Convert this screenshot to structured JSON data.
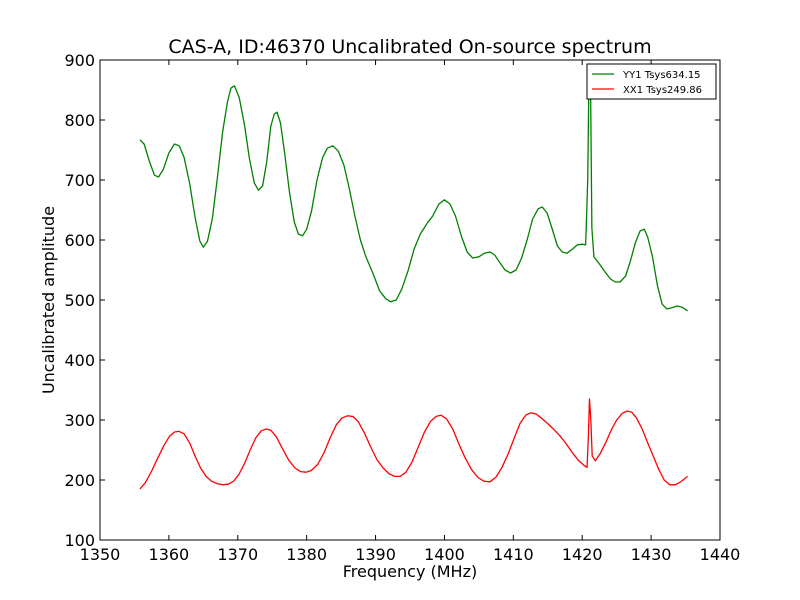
{
  "chart_data": {
    "type": "line",
    "title": "CAS-A, ID:46370 Uncalibrated On-source spectrum",
    "xlabel": "Frequency (MHz)",
    "ylabel": "Uncalibrated amplitude",
    "xlim": [
      1350,
      1440
    ],
    "ylim": [
      100,
      900
    ],
    "xticks": [
      1350,
      1360,
      1370,
      1380,
      1390,
      1400,
      1410,
      1420,
      1430,
      1440
    ],
    "yticks": [
      100,
      200,
      300,
      400,
      500,
      600,
      700,
      800,
      900
    ],
    "grid": false,
    "legend_position": "top-right",
    "series": [
      {
        "name": "YY1 Tsys634.15",
        "color": "#008000",
        "points": [
          [
            1355.8,
            767
          ],
          [
            1356.4,
            760
          ],
          [
            1357.2,
            730
          ],
          [
            1357.9,
            708
          ],
          [
            1358.5,
            705
          ],
          [
            1359.2,
            718
          ],
          [
            1360.0,
            745
          ],
          [
            1360.8,
            760
          ],
          [
            1361.5,
            757
          ],
          [
            1362.2,
            738
          ],
          [
            1363.0,
            695
          ],
          [
            1363.8,
            638
          ],
          [
            1364.5,
            598
          ],
          [
            1365.0,
            588
          ],
          [
            1365.6,
            598
          ],
          [
            1366.3,
            635
          ],
          [
            1367.0,
            700
          ],
          [
            1367.8,
            780
          ],
          [
            1368.5,
            830
          ],
          [
            1369.0,
            853
          ],
          [
            1369.5,
            857
          ],
          [
            1370.2,
            838
          ],
          [
            1371.0,
            790
          ],
          [
            1371.7,
            735
          ],
          [
            1372.4,
            695
          ],
          [
            1373.0,
            683
          ],
          [
            1373.6,
            690
          ],
          [
            1374.2,
            730
          ],
          [
            1374.8,
            790
          ],
          [
            1375.3,
            810
          ],
          [
            1375.7,
            813
          ],
          [
            1376.2,
            795
          ],
          [
            1376.8,
            745
          ],
          [
            1377.5,
            680
          ],
          [
            1378.2,
            630
          ],
          [
            1378.8,
            610
          ],
          [
            1379.4,
            607
          ],
          [
            1380.0,
            618
          ],
          [
            1380.7,
            648
          ],
          [
            1381.5,
            700
          ],
          [
            1382.3,
            737
          ],
          [
            1383.0,
            753
          ],
          [
            1383.8,
            757
          ],
          [
            1384.6,
            748
          ],
          [
            1385.4,
            725
          ],
          [
            1386.2,
            685
          ],
          [
            1387.0,
            640
          ],
          [
            1387.8,
            600
          ],
          [
            1388.6,
            572
          ],
          [
            1389.6,
            545
          ],
          [
            1390.6,
            515
          ],
          [
            1391.5,
            502
          ],
          [
            1392.2,
            497
          ],
          [
            1393.0,
            500
          ],
          [
            1393.8,
            518
          ],
          [
            1394.7,
            548
          ],
          [
            1395.6,
            585
          ],
          [
            1396.5,
            610
          ],
          [
            1397.5,
            628
          ],
          [
            1398.3,
            640
          ],
          [
            1399.2,
            660
          ],
          [
            1400.0,
            667
          ],
          [
            1400.8,
            660
          ],
          [
            1401.6,
            640
          ],
          [
            1402.5,
            605
          ],
          [
            1403.3,
            580
          ],
          [
            1404.1,
            570
          ],
          [
            1405.0,
            572
          ],
          [
            1405.8,
            578
          ],
          [
            1406.6,
            580
          ],
          [
            1407.3,
            575
          ],
          [
            1408.0,
            563
          ],
          [
            1408.8,
            550
          ],
          [
            1409.6,
            545
          ],
          [
            1410.4,
            550
          ],
          [
            1411.2,
            570
          ],
          [
            1412.0,
            600
          ],
          [
            1412.8,
            635
          ],
          [
            1413.6,
            652
          ],
          [
            1414.2,
            655
          ],
          [
            1414.9,
            645
          ],
          [
            1415.6,
            620
          ],
          [
            1416.4,
            590
          ],
          [
            1417.1,
            580
          ],
          [
            1417.8,
            578
          ],
          [
            1418.6,
            585
          ],
          [
            1419.3,
            592
          ],
          [
            1420.0,
            593
          ],
          [
            1420.5,
            592
          ],
          [
            1420.8,
            700
          ],
          [
            1421.0,
            893
          ],
          [
            1421.2,
            870
          ],
          [
            1421.4,
            620
          ],
          [
            1421.7,
            572
          ],
          [
            1422.5,
            560
          ],
          [
            1423.3,
            547
          ],
          [
            1424.1,
            535
          ],
          [
            1424.8,
            530
          ],
          [
            1425.5,
            530
          ],
          [
            1426.3,
            540
          ],
          [
            1427.0,
            565
          ],
          [
            1427.7,
            595
          ],
          [
            1428.4,
            615
          ],
          [
            1429.0,
            618
          ],
          [
            1429.5,
            605
          ],
          [
            1430.2,
            572
          ],
          [
            1430.9,
            525
          ],
          [
            1431.6,
            493
          ],
          [
            1432.3,
            485
          ],
          [
            1433.0,
            487
          ],
          [
            1433.8,
            490
          ],
          [
            1434.5,
            488
          ],
          [
            1435.3,
            482
          ]
        ]
      },
      {
        "name": "XX1 Tsys249.86",
        "color": "#ff0000",
        "points": [
          [
            1355.8,
            185
          ],
          [
            1356.6,
            196
          ],
          [
            1357.5,
            215
          ],
          [
            1358.4,
            237
          ],
          [
            1359.3,
            258
          ],
          [
            1360.1,
            273
          ],
          [
            1360.8,
            280
          ],
          [
            1361.5,
            281
          ],
          [
            1362.2,
            277
          ],
          [
            1363.0,
            262
          ],
          [
            1363.8,
            240
          ],
          [
            1364.6,
            220
          ],
          [
            1365.4,
            206
          ],
          [
            1366.2,
            198
          ],
          [
            1367.0,
            194
          ],
          [
            1367.8,
            192
          ],
          [
            1368.6,
            193
          ],
          [
            1369.4,
            198
          ],
          [
            1370.2,
            210
          ],
          [
            1371.0,
            228
          ],
          [
            1371.8,
            250
          ],
          [
            1372.6,
            270
          ],
          [
            1373.4,
            282
          ],
          [
            1374.1,
            285
          ],
          [
            1374.8,
            283
          ],
          [
            1375.6,
            272
          ],
          [
            1376.5,
            252
          ],
          [
            1377.4,
            233
          ],
          [
            1378.3,
            220
          ],
          [
            1379.1,
            214
          ],
          [
            1379.9,
            213
          ],
          [
            1380.7,
            216
          ],
          [
            1381.6,
            226
          ],
          [
            1382.5,
            245
          ],
          [
            1383.4,
            270
          ],
          [
            1384.3,
            292
          ],
          [
            1385.1,
            303
          ],
          [
            1385.9,
            307
          ],
          [
            1386.7,
            306
          ],
          [
            1387.5,
            297
          ],
          [
            1388.4,
            278
          ],
          [
            1389.3,
            255
          ],
          [
            1390.2,
            234
          ],
          [
            1391.1,
            220
          ],
          [
            1392.0,
            210
          ],
          [
            1392.8,
            206
          ],
          [
            1393.6,
            206
          ],
          [
            1394.4,
            213
          ],
          [
            1395.3,
            230
          ],
          [
            1396.2,
            255
          ],
          [
            1397.1,
            280
          ],
          [
            1398.0,
            298
          ],
          [
            1398.8,
            306
          ],
          [
            1399.5,
            308
          ],
          [
            1400.3,
            302
          ],
          [
            1401.2,
            285
          ],
          [
            1402.1,
            260
          ],
          [
            1403.0,
            237
          ],
          [
            1403.9,
            218
          ],
          [
            1404.8,
            205
          ],
          [
            1405.7,
            198
          ],
          [
            1406.6,
            197
          ],
          [
            1407.5,
            205
          ],
          [
            1408.4,
            222
          ],
          [
            1409.3,
            245
          ],
          [
            1410.2,
            272
          ],
          [
            1411.0,
            295
          ],
          [
            1411.8,
            308
          ],
          [
            1412.5,
            312
          ],
          [
            1413.3,
            310
          ],
          [
            1414.1,
            303
          ],
          [
            1415.0,
            294
          ],
          [
            1415.9,
            284
          ],
          [
            1416.8,
            273
          ],
          [
            1417.7,
            260
          ],
          [
            1418.6,
            245
          ],
          [
            1419.5,
            232
          ],
          [
            1420.3,
            224
          ],
          [
            1420.7,
            221
          ],
          [
            1420.9,
            275
          ],
          [
            1421.05,
            335
          ],
          [
            1421.25,
            300
          ],
          [
            1421.45,
            240
          ],
          [
            1421.9,
            232
          ],
          [
            1422.6,
            244
          ],
          [
            1423.4,
            262
          ],
          [
            1424.2,
            283
          ],
          [
            1425.0,
            300
          ],
          [
            1425.8,
            311
          ],
          [
            1426.5,
            315
          ],
          [
            1427.2,
            313
          ],
          [
            1427.9,
            303
          ],
          [
            1428.7,
            285
          ],
          [
            1429.5,
            262
          ],
          [
            1430.3,
            240
          ],
          [
            1431.1,
            218
          ],
          [
            1431.9,
            200
          ],
          [
            1432.7,
            192
          ],
          [
            1433.5,
            192
          ],
          [
            1434.3,
            197
          ],
          [
            1435.3,
            206
          ]
        ]
      }
    ]
  }
}
